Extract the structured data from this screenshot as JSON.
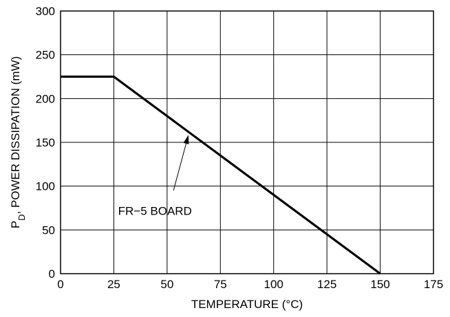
{
  "chart_data": {
    "type": "line",
    "xlabel": "TEMPERATURE (°C)",
    "ylabel_main": "P",
    "ylabel_sub": "D",
    "ylabel_rest": ", POWER DISSIPATION (mW)",
    "xlim": [
      0,
      175
    ],
    "ylim": [
      0,
      300
    ],
    "x_ticks": [
      0,
      25,
      50,
      75,
      100,
      125,
      150,
      175
    ],
    "y_ticks": [
      0,
      50,
      100,
      150,
      200,
      250,
      300
    ],
    "grid": true,
    "series": [
      {
        "x": [
          0,
          25,
          150
        ],
        "y": [
          225,
          225,
          0
        ]
      }
    ],
    "annotations": [
      {
        "text": "FR−5 BOARD",
        "points_to": {
          "x": 60,
          "y": 160
        }
      }
    ]
  }
}
